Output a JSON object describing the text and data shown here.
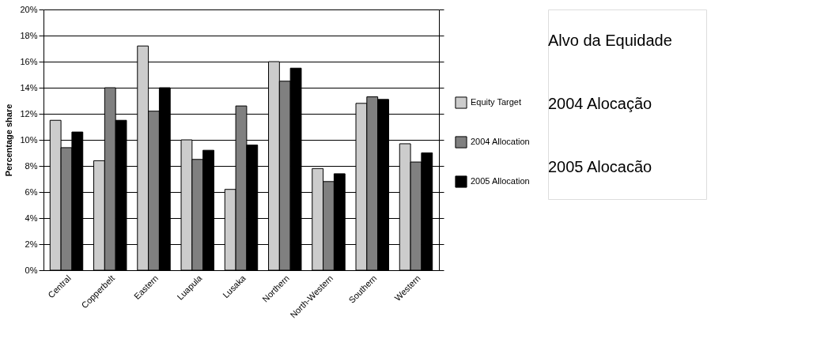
{
  "chart_data": {
    "type": "bar",
    "ylabel": "Percentage share",
    "categories": [
      "Central",
      "Copperbelt",
      "Eastern",
      "Luapula",
      "Lusaka",
      "Northern",
      "North-Western",
      "Southern",
      "Western"
    ],
    "series": [
      {
        "name": "Equity Target",
        "color": "#cccccc",
        "values": [
          11.5,
          8.4,
          17.2,
          10.0,
          6.2,
          16.0,
          7.8,
          12.8,
          9.7
        ]
      },
      {
        "name": "2004 Allocation",
        "color": "#808080",
        "values": [
          9.4,
          14.0,
          12.2,
          8.5,
          12.6,
          14.5,
          6.8,
          13.3,
          8.3
        ]
      },
      {
        "name": "2005 Allocation",
        "color": "#000000",
        "values": [
          10.6,
          11.5,
          14.0,
          9.2,
          9.6,
          15.5,
          7.4,
          13.1,
          9.0
        ]
      }
    ],
    "ylim": [
      0,
      20
    ],
    "yticks": [
      {
        "value": 0,
        "label": "0%"
      },
      {
        "value": 2,
        "label": "2%"
      },
      {
        "value": 4,
        "label": "4%"
      },
      {
        "value": 6,
        "label": "6%"
      },
      {
        "value": 8,
        "label": "8%"
      },
      {
        "value": 10,
        "label": "10%"
      },
      {
        "value": 12,
        "label": "12%"
      },
      {
        "value": 14,
        "label": "14%"
      },
      {
        "value": 16,
        "label": "16%"
      },
      {
        "value": 18,
        "label": "18%"
      },
      {
        "value": 20,
        "label": "20%"
      }
    ],
    "grid": "y",
    "legend": "right",
    "annotations": [
      "Alvo da  Equidade",
      "2004 Alocação",
      "2005 Alocacão"
    ]
  }
}
